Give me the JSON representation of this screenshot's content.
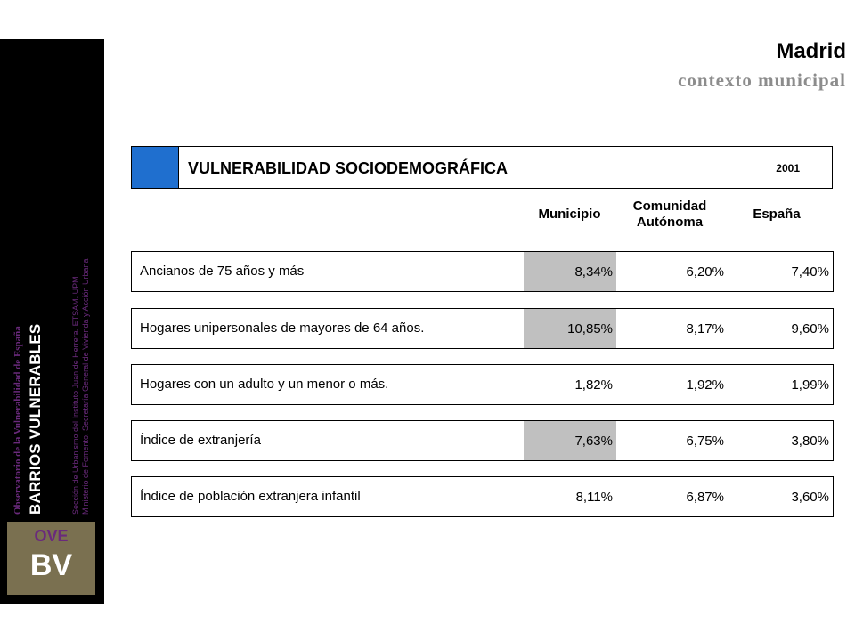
{
  "sidebar": {
    "observatorio": "Observatorio de la Vulnerabilidad de España",
    "barrios": "BARRIOS VULNERABLES",
    "seccion": "Sección de Urbanismo del Instituto Juan de Herrera. ETSAM. UPM",
    "ministerio": "Ministerio de Fomento. Secretaría General de Vivienda y Acción Urbana",
    "logo_top": "OVE",
    "logo_bottom": "BV"
  },
  "header": {
    "city": "Madrid",
    "context": "contexto municipal"
  },
  "table": {
    "title": "VULNERABILIDAD SOCIODEMOGRÁFICA",
    "year": "2001",
    "columns": [
      "Municipio",
      "Comunidad Autónoma",
      "España"
    ],
    "rows": [
      {
        "label": "Ancianos de 75 años y más",
        "municipio": "8,34%",
        "comunidad": "6,20%",
        "espana": "7,40%",
        "highlight": true
      },
      {
        "label": "Hogares unipersonales de mayores de 64 años.",
        "municipio": "10,85%",
        "comunidad": "8,17%",
        "espana": "9,60%",
        "highlight": true
      },
      {
        "label": "Hogares con un adulto y un menor o más.",
        "municipio": "1,82%",
        "comunidad": "1,92%",
        "espana": "1,99%",
        "highlight": false
      },
      {
        "label": "Índice de extranjería",
        "municipio": "7,63%",
        "comunidad": "6,75%",
        "espana": "3,80%",
        "highlight": true
      },
      {
        "label": "Índice de población extranjera infantil",
        "municipio": "8,11%",
        "comunidad": "6,87%",
        "espana": "3,60%",
        "highlight": false
      }
    ]
  },
  "colors": {
    "accent_blue": "#1f6fcf",
    "highlight_gray": "#c0c0c0",
    "sidebar_black": "#000000",
    "purple_text": "#6a2a7c",
    "logo_bg": "#7a7050"
  }
}
